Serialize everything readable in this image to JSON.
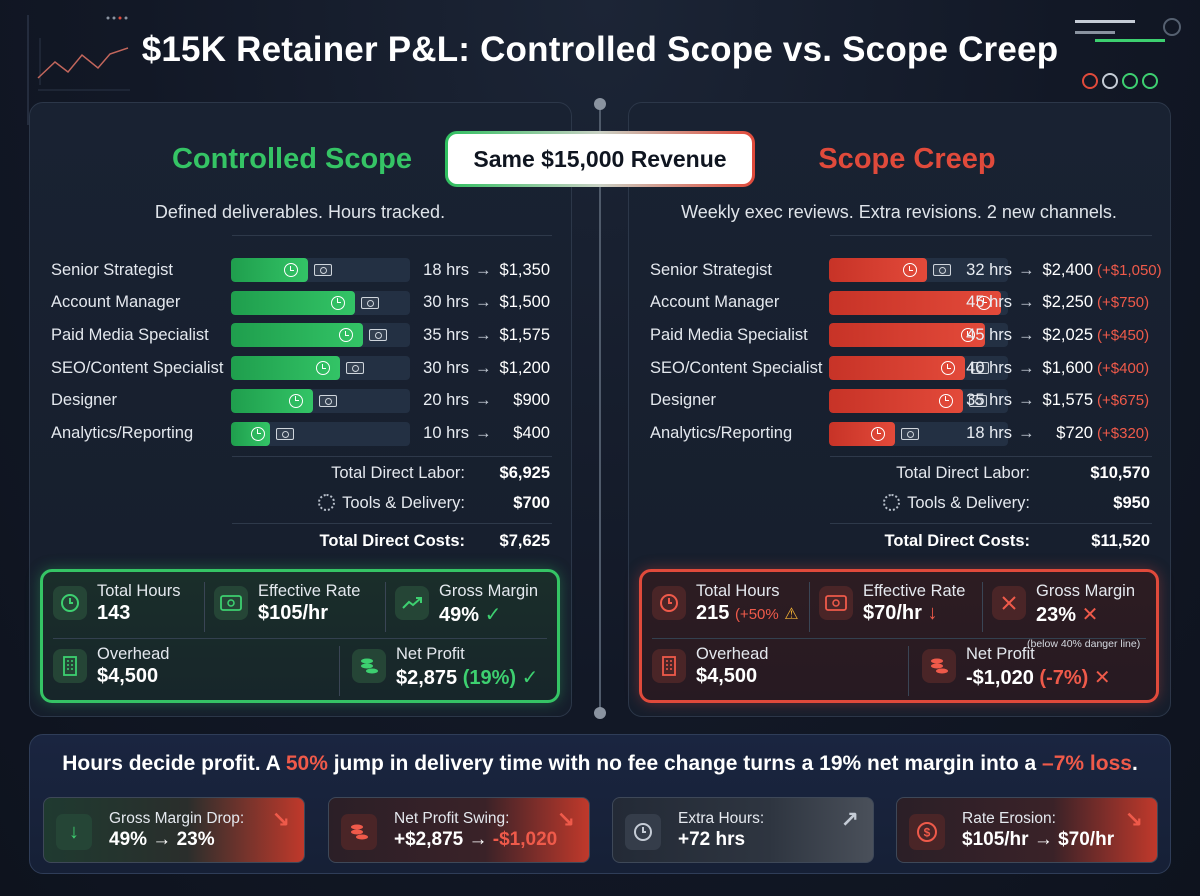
{
  "title": "$15K Retainer P&L: Controlled Scope vs. Scope Creep",
  "badge": "Same $15,000 Revenue",
  "colors": {
    "green": "#35c465",
    "red": "#e04a3b",
    "background": "#121826"
  },
  "left": {
    "heading": "Controlled Scope",
    "subtitle": "Defined deliverables. Hours tracked.",
    "rows": [
      {
        "role": "Senior Strategist",
        "hours": "18 hrs",
        "cost": "$1,350",
        "fill": 0.43
      },
      {
        "role": "Account Manager",
        "hours": "30 hrs",
        "cost": "$1,500",
        "fill": 0.69
      },
      {
        "role": "Paid Media Specialist",
        "hours": "35 hrs",
        "cost": "$1,575",
        "fill": 0.74
      },
      {
        "role": "SEO/Content Specialist",
        "hours": "30 hrs",
        "cost": "$1,200",
        "fill": 0.61
      },
      {
        "role": "Designer",
        "hours": "20 hrs",
        "cost": "$900",
        "fill": 0.46
      },
      {
        "role": "Analytics/Reporting",
        "hours": "10 hrs",
        "cost": "$400",
        "fill": 0.22
      }
    ],
    "totals": {
      "labor_label": "Total Direct Labor:",
      "labor": "$6,925",
      "tools_label": "Tools & Delivery:",
      "tools": "$700",
      "costs_label": "Total Direct Costs:",
      "costs": "$7,625"
    },
    "kpis": {
      "hours_label": "Total Hours",
      "hours": "143",
      "rate_label": "Effective Rate",
      "rate": "$105/hr",
      "margin_label": "Gross Margin",
      "margin": "49%",
      "overhead_label": "Overhead",
      "overhead": "$4,500",
      "profit_label": "Net Profit",
      "profit": "$2,875",
      "profit_pct": "(19%)"
    }
  },
  "right": {
    "heading": "Scope Creep",
    "subtitle": "Weekly exec reviews. Extra revisions. 2 new channels.",
    "rows": [
      {
        "role": "Senior Strategist",
        "hours": "32 hrs",
        "cost": "$2,400",
        "delta": "(+$1,050)",
        "fill": 0.55
      },
      {
        "role": "Account Manager",
        "hours": "45 hrs",
        "cost": "$2,250",
        "delta": "(+$750)",
        "fill": 0.96
      },
      {
        "role": "Paid Media Specialist",
        "hours": "45 hrs",
        "cost": "$2,025",
        "delta": "(+$450)",
        "fill": 0.87
      },
      {
        "role": "SEO/Content Specialist",
        "hours": "40 hrs",
        "cost": "$1,600",
        "delta": "(+$400)",
        "fill": 0.76
      },
      {
        "role": "Designer",
        "hours": "35 hrs",
        "cost": "$1,575",
        "delta": "(+$675)",
        "fill": 0.75
      },
      {
        "role": "Analytics/Reporting",
        "hours": "18 hrs",
        "cost": "$720",
        "delta": "(+$320)",
        "fill": 0.37
      }
    ],
    "totals": {
      "labor_label": "Total Direct Labor:",
      "labor": "$10,570",
      "tools_label": "Tools & Delivery:",
      "tools": "$950",
      "costs_label": "Total Direct Costs:",
      "costs": "$11,520"
    },
    "kpis": {
      "hours_label": "Total Hours",
      "hours": "215",
      "hours_delta": "(+50%",
      "rate_label": "Effective Rate",
      "rate": "$70/hr",
      "margin_label": "Gross Margin",
      "margin": "23%",
      "margin_note": "(below 40% danger line)",
      "overhead_label": "Overhead",
      "overhead": "$4,500",
      "profit_label": "Net Profit",
      "profit": "-$1,020",
      "profit_pct": "(-7%)"
    }
  },
  "headline": {
    "part1": "Hours decide profit. A ",
    "pct": "50%",
    "part2": " jump in delivery time with no fee change turns a 19% net margin into a ",
    "loss": "–7% loss",
    "part3": "."
  },
  "cards": [
    {
      "label": "Gross Margin Drop:",
      "value": "49% → 23%"
    },
    {
      "label": "Net Profit Swing:",
      "value_a": "+$2,875 → ",
      "value_b": "-$1,020"
    },
    {
      "label": "Extra Hours:",
      "value": "+72 hrs"
    },
    {
      "label": "Rate Erosion:",
      "value": "$105/hr → $70/hr"
    }
  ]
}
